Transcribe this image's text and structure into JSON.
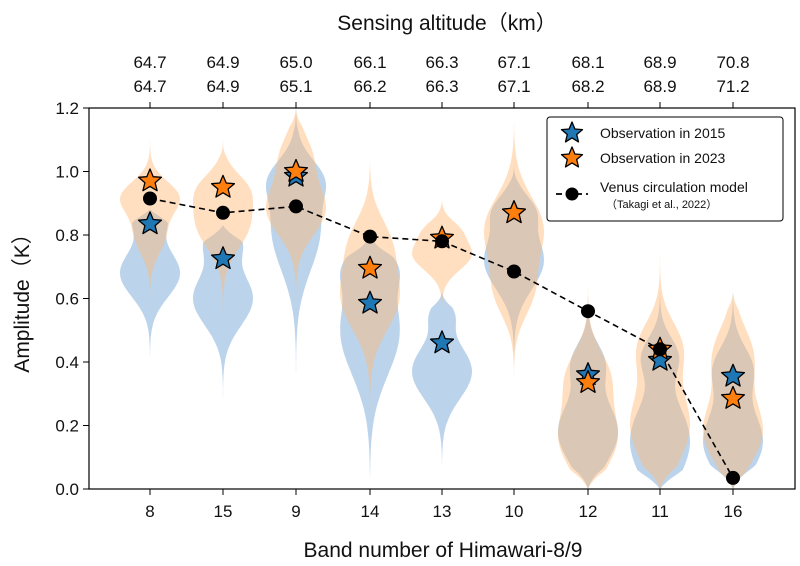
{
  "chart_data": {
    "type": "violin",
    "title_top": "Sensing altitude（km）",
    "xlabel": "Band number of Himawari-8/9",
    "ylabel": "Amplitude（K）",
    "ylim": [
      0.0,
      1.2
    ],
    "yticks": [
      "0.0",
      "0.2",
      "0.4",
      "0.6",
      "0.8",
      "1.0",
      "1.2"
    ],
    "categories": [
      "8",
      "15",
      "9",
      "14",
      "13",
      "10",
      "12",
      "11",
      "16"
    ],
    "altitudes_2015": [
      "64.7",
      "64.9",
      "65.0",
      "66.1",
      "66.3",
      "67.1",
      "68.1",
      "68.9",
      "70.8"
    ],
    "altitudes_2023": [
      "64.7",
      "64.9",
      "65.1",
      "66.2",
      "66.3",
      "67.1",
      "68.2",
      "68.9",
      "71.2"
    ],
    "series": [
      {
        "name": "Observation in 2015",
        "color": "#1f77b4",
        "values": [
          0.835,
          0.725,
          0.985,
          0.585,
          0.46,
          0.87,
          0.36,
          0.405,
          0.355
        ]
      },
      {
        "name": "Observation in 2023",
        "color": "#ff7f0e",
        "values": [
          0.97,
          0.95,
          1.0,
          0.695,
          0.79,
          0.87,
          0.335,
          0.44,
          0.285
        ]
      },
      {
        "name": "Venus circulation model",
        "sublabel": "（Takagi et al., 2022）",
        "color": "#000000",
        "values": [
          0.915,
          0.87,
          0.89,
          0.795,
          0.78,
          0.685,
          0.56,
          0.44,
          0.035
        ]
      }
    ],
    "violins_2015": [
      {
        "min": 0.39,
        "max": 0.88,
        "modes": [
          [
            0.68,
            0.075,
            0.55
          ],
          [
            0.86,
            0.05,
            0.3
          ]
        ]
      },
      {
        "min": 0.22,
        "max": 0.83,
        "modes": [
          [
            0.6,
            0.085,
            0.55
          ],
          [
            0.78,
            0.05,
            0.3
          ]
        ]
      },
      {
        "min": 0.21,
        "max": 1.21,
        "modes": [
          [
            0.82,
            0.13,
            0.5
          ],
          [
            0.98,
            0.06,
            0.35
          ]
        ]
      },
      {
        "min": 0.0,
        "max": 0.8,
        "modes": [
          [
            0.5,
            0.14,
            0.5
          ],
          [
            0.7,
            0.06,
            0.3
          ]
        ]
      },
      {
        "min": 0.05,
        "max": 0.62,
        "modes": [
          [
            0.37,
            0.085,
            0.6
          ],
          [
            0.55,
            0.04,
            0.2
          ]
        ]
      },
      {
        "min": 0.38,
        "max": 1.02,
        "modes": [
          [
            0.72,
            0.09,
            0.55
          ],
          [
            0.88,
            0.05,
            0.3
          ]
        ]
      },
      {
        "min": 0.0,
        "max": 0.79,
        "modes": [
          [
            0.18,
            0.1,
            0.5
          ],
          [
            0.4,
            0.06,
            0.25
          ]
        ]
      },
      {
        "min": 0.0,
        "max": 0.68,
        "modes": [
          [
            0.15,
            0.12,
            0.45
          ],
          [
            0.42,
            0.06,
            0.25
          ]
        ]
      },
      {
        "min": 0.0,
        "max": 0.86,
        "modes": [
          [
            0.15,
            0.1,
            0.4
          ],
          [
            0.38,
            0.07,
            0.25
          ]
        ]
      }
    ],
    "violins_2023": [
      {
        "min": 0.58,
        "max": 1.18,
        "modes": [
          [
            0.92,
            0.05,
            0.55
          ],
          [
            0.8,
            0.06,
            0.3
          ]
        ]
      },
      {
        "min": 0.48,
        "max": 1.1,
        "modes": [
          [
            0.84,
            0.08,
            0.5
          ],
          [
            0.95,
            0.05,
            0.3
          ]
        ]
      },
      {
        "min": 0.52,
        "max": 1.2,
        "modes": [
          [
            0.88,
            0.08,
            0.6
          ],
          [
            1.05,
            0.07,
            0.3
          ]
        ]
      },
      {
        "min": 0.14,
        "max": 1.07,
        "modes": [
          [
            0.6,
            0.1,
            0.5
          ],
          [
            0.78,
            0.08,
            0.3
          ]
        ]
      },
      {
        "min": 0.55,
        "max": 0.92,
        "modes": [
          [
            0.74,
            0.05,
            0.55
          ],
          [
            0.82,
            0.03,
            0.2
          ]
        ]
      },
      {
        "min": 0.31,
        "max": 1.18,
        "modes": [
          [
            0.82,
            0.1,
            0.5
          ],
          [
            0.62,
            0.08,
            0.3
          ]
        ]
      },
      {
        "min": 0.0,
        "max": 0.7,
        "modes": [
          [
            0.16,
            0.1,
            0.45
          ],
          [
            0.36,
            0.08,
            0.3
          ]
        ]
      },
      {
        "min": 0.0,
        "max": 0.83,
        "modes": [
          [
            0.2,
            0.12,
            0.45
          ],
          [
            0.45,
            0.08,
            0.3
          ]
        ]
      },
      {
        "min": 0.0,
        "max": 0.62,
        "modes": [
          [
            0.18,
            0.1,
            0.45
          ],
          [
            0.42,
            0.09,
            0.3
          ]
        ]
      }
    ]
  }
}
